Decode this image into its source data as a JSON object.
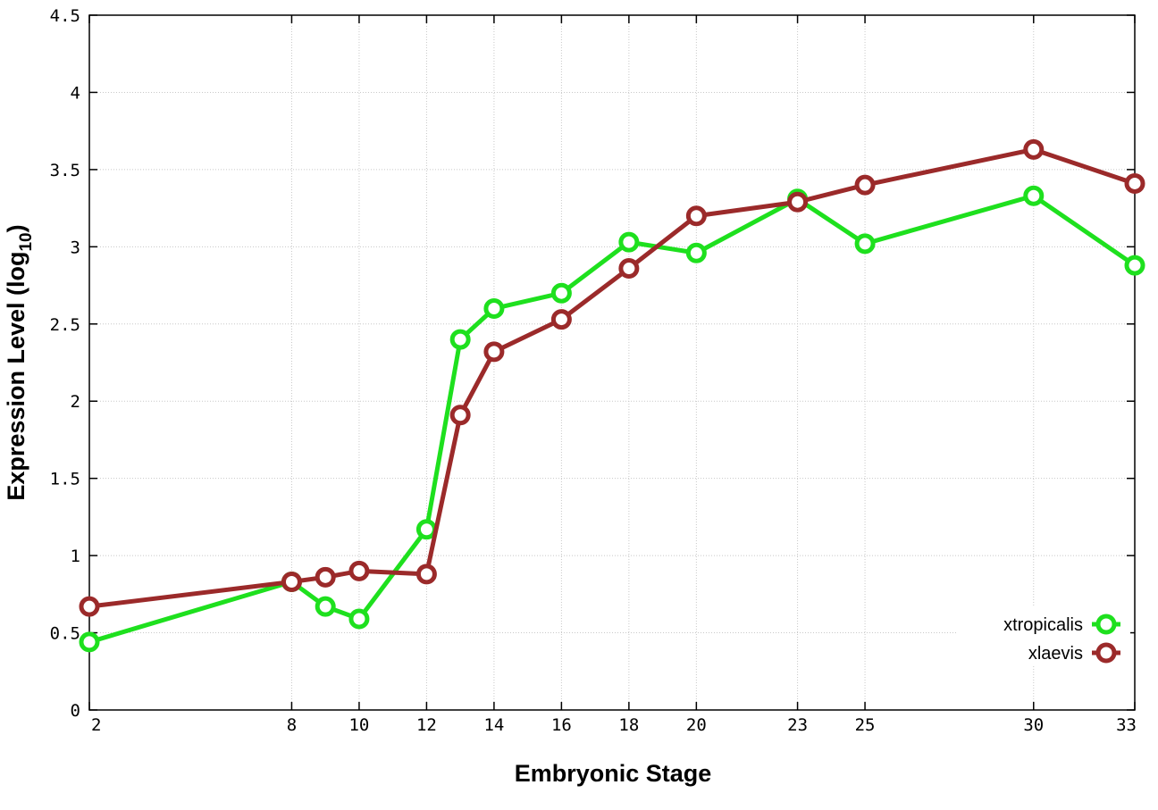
{
  "chart_data": {
    "type": "line",
    "xlabel": "Embryonic Stage",
    "ylabel_main": "Expression Level (log",
    "ylabel_sub": "10",
    "ylabel_close": ")",
    "x_ticks": [
      2,
      8,
      10,
      12,
      14,
      16,
      18,
      20,
      23,
      25,
      30,
      33
    ],
    "y_ticks": [
      0,
      0.5,
      1,
      1.5,
      2,
      2.5,
      3,
      3.5,
      4,
      4.5
    ],
    "y_tick_labels": [
      "0",
      "0.5",
      "1",
      "1.5",
      "2",
      "2.5",
      "3",
      "3.5",
      "4",
      "4.5"
    ],
    "ylim": [
      0,
      4.5
    ],
    "grid": true,
    "legend_position": "bottom-right",
    "series": [
      {
        "name": "xtropicalis",
        "color": "#1ee01e",
        "points": [
          [
            2,
            0.44
          ],
          [
            8,
            0.83
          ],
          [
            9,
            0.67
          ],
          [
            10,
            0.59
          ],
          [
            12,
            1.17
          ],
          [
            13,
            2.4
          ],
          [
            14,
            2.6
          ],
          [
            16,
            2.7
          ],
          [
            18,
            3.03
          ],
          [
            20,
            2.96
          ],
          [
            23,
            3.31
          ],
          [
            25,
            3.02
          ],
          [
            30,
            3.33
          ],
          [
            33,
            2.88
          ]
        ]
      },
      {
        "name": "xlaevis",
        "color": "#9b2a2a",
        "points": [
          [
            2,
            0.67
          ],
          [
            8,
            0.83
          ],
          [
            9,
            0.86
          ],
          [
            10,
            0.9
          ],
          [
            12,
            0.88
          ],
          [
            13,
            1.91
          ],
          [
            14,
            2.32
          ],
          [
            16,
            2.53
          ],
          [
            18,
            2.86
          ],
          [
            20,
            3.2
          ],
          [
            23,
            3.29
          ],
          [
            25,
            3.4
          ],
          [
            30,
            3.63
          ],
          [
            33,
            3.41
          ]
        ]
      }
    ]
  }
}
